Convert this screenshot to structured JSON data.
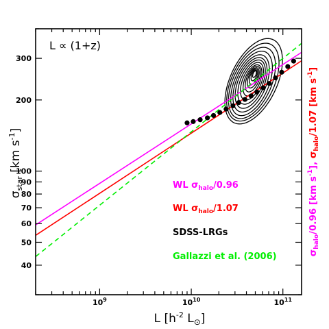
{
  "chart_data": {
    "type": "scatter",
    "annotation": "L ∝ (1+z)",
    "xlabel": {
      "main": "L [h",
      "exp": "-2",
      "mid": " L",
      "sub": "⊙",
      "end": "]"
    },
    "ylabel": {
      "main": "σ",
      "sub": "star",
      "rest": " [km s",
      "exp": "-1",
      "end": "]"
    },
    "ylabel_right": {
      "p1": "σ",
      "p1sub": "halo",
      "p2": "/0.96 [km s",
      "p2exp": "-1",
      "p3": "],  ",
      "p4": "σ",
      "p4sub": "halo",
      "p5": "/1.07 [km s",
      "p5exp": "-1",
      "p6": "]"
    },
    "xscale": "log",
    "yscale": "log",
    "xlim": [
      200000000,
      160000000000
    ],
    "ylim": [
      30,
      400
    ],
    "x_ticks": [
      {
        "value": 1000000000,
        "label": "10",
        "exp": "9"
      },
      {
        "value": 10000000000,
        "label": "10",
        "exp": "10"
      },
      {
        "value": 100000000000,
        "label": "10",
        "exp": "11"
      }
    ],
    "y_ticks": [
      {
        "value": 40,
        "label": "40"
      },
      {
        "value": 50,
        "label": "50"
      },
      {
        "value": 60,
        "label": "60"
      },
      {
        "value": 70,
        "label": "70"
      },
      {
        "value": 80,
        "label": "80"
      },
      {
        "value": 90,
        "label": "90"
      },
      {
        "value": 100,
        "label": "100"
      },
      {
        "value": 200,
        "label": "200"
      },
      {
        "value": 300,
        "label": "300"
      }
    ],
    "series": [
      {
        "name": "WL σhalo/0.96",
        "legend_main": "WL σ",
        "legend_sub": "halo",
        "legend_tail": "/0.96",
        "kind": "line",
        "color": "#ff00ff",
        "dash": "",
        "x": [
          200000000,
          160000000000
        ],
        "y": [
          59.2,
          318
        ]
      },
      {
        "name": "WL σhalo/1.07",
        "legend_main": "WL σ",
        "legend_sub": "halo",
        "legend_tail": "/1.07",
        "kind": "line",
        "color": "#ff0000",
        "dash": "",
        "x": [
          200000000,
          160000000000
        ],
        "y": [
          53.5,
          293
        ]
      },
      {
        "name": "SDSS-LRGs",
        "legend_main": "SDSS-LRGs",
        "legend_sub": "",
        "legend_tail": "",
        "kind": "points",
        "color": "#000000",
        "dash": "",
        "x": [
          9000000000,
          10500000000,
          12500000000,
          15000000000,
          17500000000,
          20500000000,
          24000000000,
          28500000000,
          33000000000,
          38500000000,
          45000000000,
          52000000000,
          61000000000,
          71000000000,
          83000000000,
          97000000000,
          113000000000,
          131000000000
        ],
        "y": [
          160,
          162,
          165,
          168,
          172,
          177,
          183,
          189,
          195,
          201,
          208,
          216,
          225,
          235,
          248,
          262,
          277,
          292
        ]
      },
      {
        "name": "Gallazzi et al. (2006)",
        "legend_main": "Gallazzi et al. (2006)",
        "legend_sub": "",
        "legend_tail": "",
        "kind": "line",
        "color": "#00ee00",
        "dash": "7,5",
        "x": [
          200000000,
          160000000000
        ],
        "y": [
          43.5,
          347
        ]
      }
    ],
    "contours": [
      {
        "cx": 48000000000,
        "cy": 240,
        "sx": 0.33,
        "sy": 0.15,
        "rot": 0.35
      },
      {
        "cx": 47000000000,
        "cy": 238,
        "sx": 0.3,
        "sy": 0.137,
        "rot": 0.35
      },
      {
        "cx": 46000000000,
        "cy": 236,
        "sx": 0.27,
        "sy": 0.125,
        "rot": 0.36
      },
      {
        "cx": 45500000000,
        "cy": 235,
        "sx": 0.24,
        "sy": 0.113,
        "rot": 0.37
      },
      {
        "cx": 45000000000,
        "cy": 235,
        "sx": 0.21,
        "sy": 0.1,
        "rot": 0.38
      },
      {
        "cx": 45000000000,
        "cy": 236,
        "sx": 0.185,
        "sy": 0.088,
        "rot": 0.39
      },
      {
        "cx": 45500000000,
        "cy": 238,
        "sx": 0.16,
        "sy": 0.076,
        "rot": 0.4
      },
      {
        "cx": 46000000000,
        "cy": 240,
        "sx": 0.135,
        "sy": 0.064,
        "rot": 0.41
      },
      {
        "cx": 46500000000,
        "cy": 242,
        "sx": 0.11,
        "sy": 0.053,
        "rot": 0.42
      },
      {
        "cx": 47000000000,
        "cy": 245,
        "sx": 0.09,
        "sy": 0.043,
        "rot": 0.43
      },
      {
        "cx": 47500000000,
        "cy": 248,
        "sx": 0.07,
        "sy": 0.034,
        "rot": 0.44
      },
      {
        "cx": 48000000000,
        "cy": 251,
        "sx": 0.052,
        "sy": 0.026,
        "rot": 0.45
      },
      {
        "cx": 48500000000,
        "cy": 254,
        "sx": 0.036,
        "sy": 0.018,
        "rot": 0.46
      },
      {
        "cx": 49000000000,
        "cy": 257,
        "sx": 0.022,
        "sy": 0.011,
        "rot": 0.47
      }
    ]
  }
}
